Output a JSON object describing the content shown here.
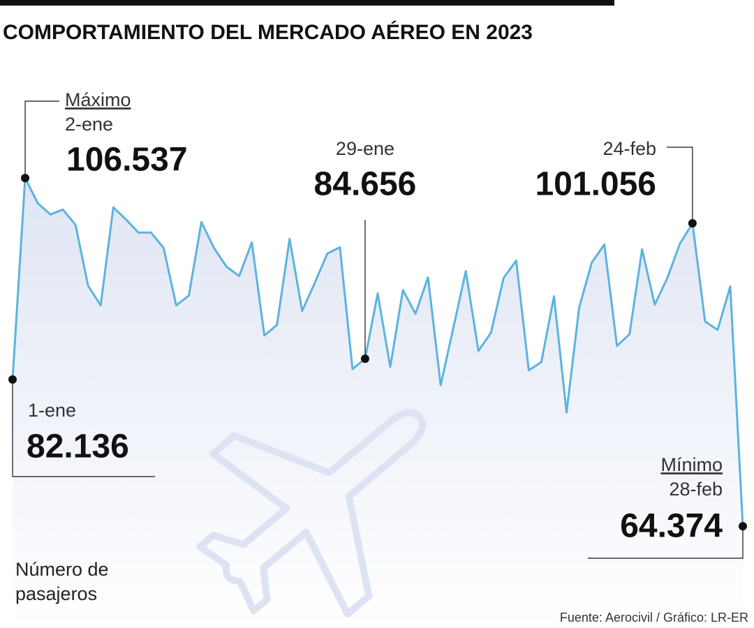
{
  "chart_data": {
    "type": "line",
    "title": "COMPORTAMIENTO DEL MERCADO AÉREO EN 2023",
    "y_label": [
      "Número de",
      "pasajeros"
    ],
    "source": "Fuente: Aerocivil / Gráfico: LR-ER",
    "max_label": "Máximo",
    "min_label": "Mínimo",
    "color": "#5cb3df",
    "ylim": [
      55000,
      115000
    ],
    "categories": [
      "1-ene",
      "2-ene",
      null,
      null,
      null,
      null,
      null,
      null,
      null,
      null,
      null,
      null,
      null,
      null,
      null,
      null,
      null,
      null,
      null,
      null,
      null,
      null,
      null,
      null,
      null,
      null,
      null,
      null,
      "29-ene",
      null,
      null,
      null,
      null,
      null,
      null,
      null,
      null,
      null,
      null,
      null,
      null,
      null,
      null,
      null,
      null,
      null,
      null,
      null,
      null,
      null,
      null,
      null,
      null,
      null,
      "24-feb",
      null,
      null,
      null,
      "28-feb"
    ],
    "values": [
      82136,
      106537,
      103490,
      102130,
      102720,
      100860,
      93490,
      91120,
      102980,
      101540,
      99930,
      99930,
      98060,
      91120,
      92300,
      101200,
      98060,
      95780,
      94680,
      98740,
      87470,
      88740,
      99170,
      90440,
      93830,
      97390,
      98150,
      83410,
      84656,
      92560,
      83660,
      92980,
      90100,
      94510,
      81460,
      88320,
      95270,
      85610,
      87810,
      94420,
      96540,
      83240,
      84250,
      92220,
      78150,
      90860,
      96290,
      98490,
      86200,
      87640,
      97900,
      91200,
      94420,
      98570,
      101056,
      89170,
      88150,
      93410,
      64374
    ],
    "value_labels": [
      "82.136",
      "106.537",
      null,
      null,
      null,
      null,
      null,
      null,
      null,
      null,
      null,
      null,
      null,
      null,
      null,
      null,
      null,
      null,
      null,
      null,
      null,
      null,
      null,
      null,
      null,
      null,
      null,
      null,
      "84.656",
      null,
      null,
      null,
      null,
      null,
      null,
      null,
      null,
      null,
      null,
      null,
      null,
      null,
      null,
      null,
      null,
      null,
      null,
      null,
      null,
      null,
      null,
      null,
      null,
      null,
      "101.056",
      null,
      null,
      null,
      "64.374"
    ]
  }
}
